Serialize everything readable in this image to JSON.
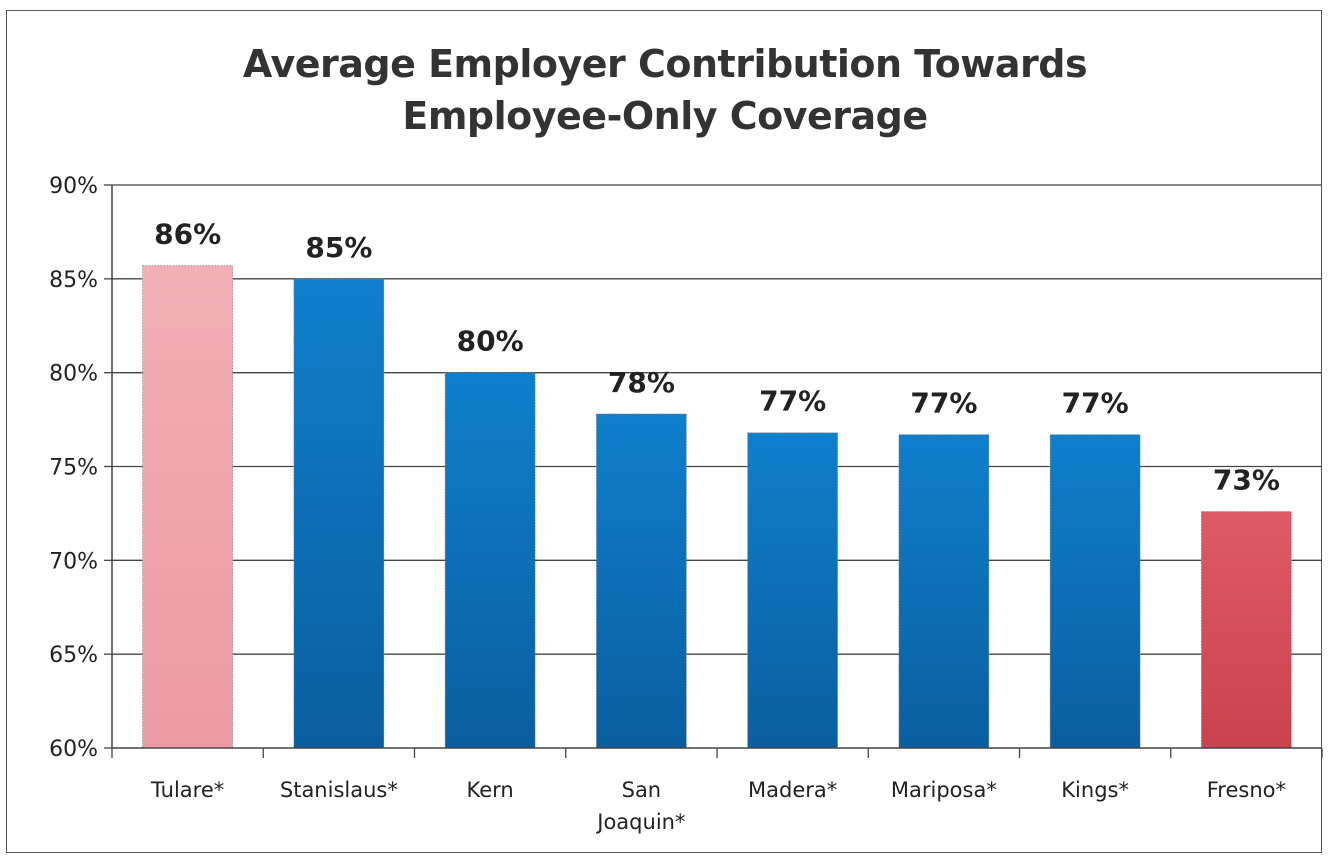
{
  "chart_data": {
    "type": "bar",
    "title_lines": [
      "Average Employer Contribution Towards",
      "Employee-Only Coverage"
    ],
    "categories": [
      "Tulare*",
      "Stanislaus*",
      "Kern",
      "San Joaquin*",
      "Madera*",
      "Mariposa*",
      "Kings*",
      "Fresno*"
    ],
    "category_lines": [
      [
        "Tulare*"
      ],
      [
        "Stanislaus*"
      ],
      [
        "Kern"
      ],
      [
        "San",
        "Joaquin*"
      ],
      [
        "Madera*"
      ],
      [
        "Mariposa*"
      ],
      [
        "Kings*"
      ],
      [
        "Fresno*"
      ]
    ],
    "values": [
      85.7,
      85.0,
      80.0,
      77.8,
      76.8,
      76.7,
      76.7,
      72.6
    ],
    "data_labels": [
      "86%",
      "85%",
      "80%",
      "78%",
      "77%",
      "77%",
      "77%",
      "73%"
    ],
    "bar_colors": [
      "#f0a3ac",
      "#0a6fba",
      "#0a6fba",
      "#0a6fba",
      "#0a6fba",
      "#0a6fba",
      "#0a6fba",
      "#d9505c"
    ],
    "ylim": [
      60,
      90
    ],
    "yticks": [
      60,
      65,
      70,
      75,
      80,
      85,
      90
    ],
    "ytick_labels": [
      "60%",
      "65%",
      "70%",
      "75%",
      "80%",
      "85%",
      "90%"
    ],
    "xlabel": "",
    "ylabel": "",
    "grid": true,
    "legend": "none"
  }
}
